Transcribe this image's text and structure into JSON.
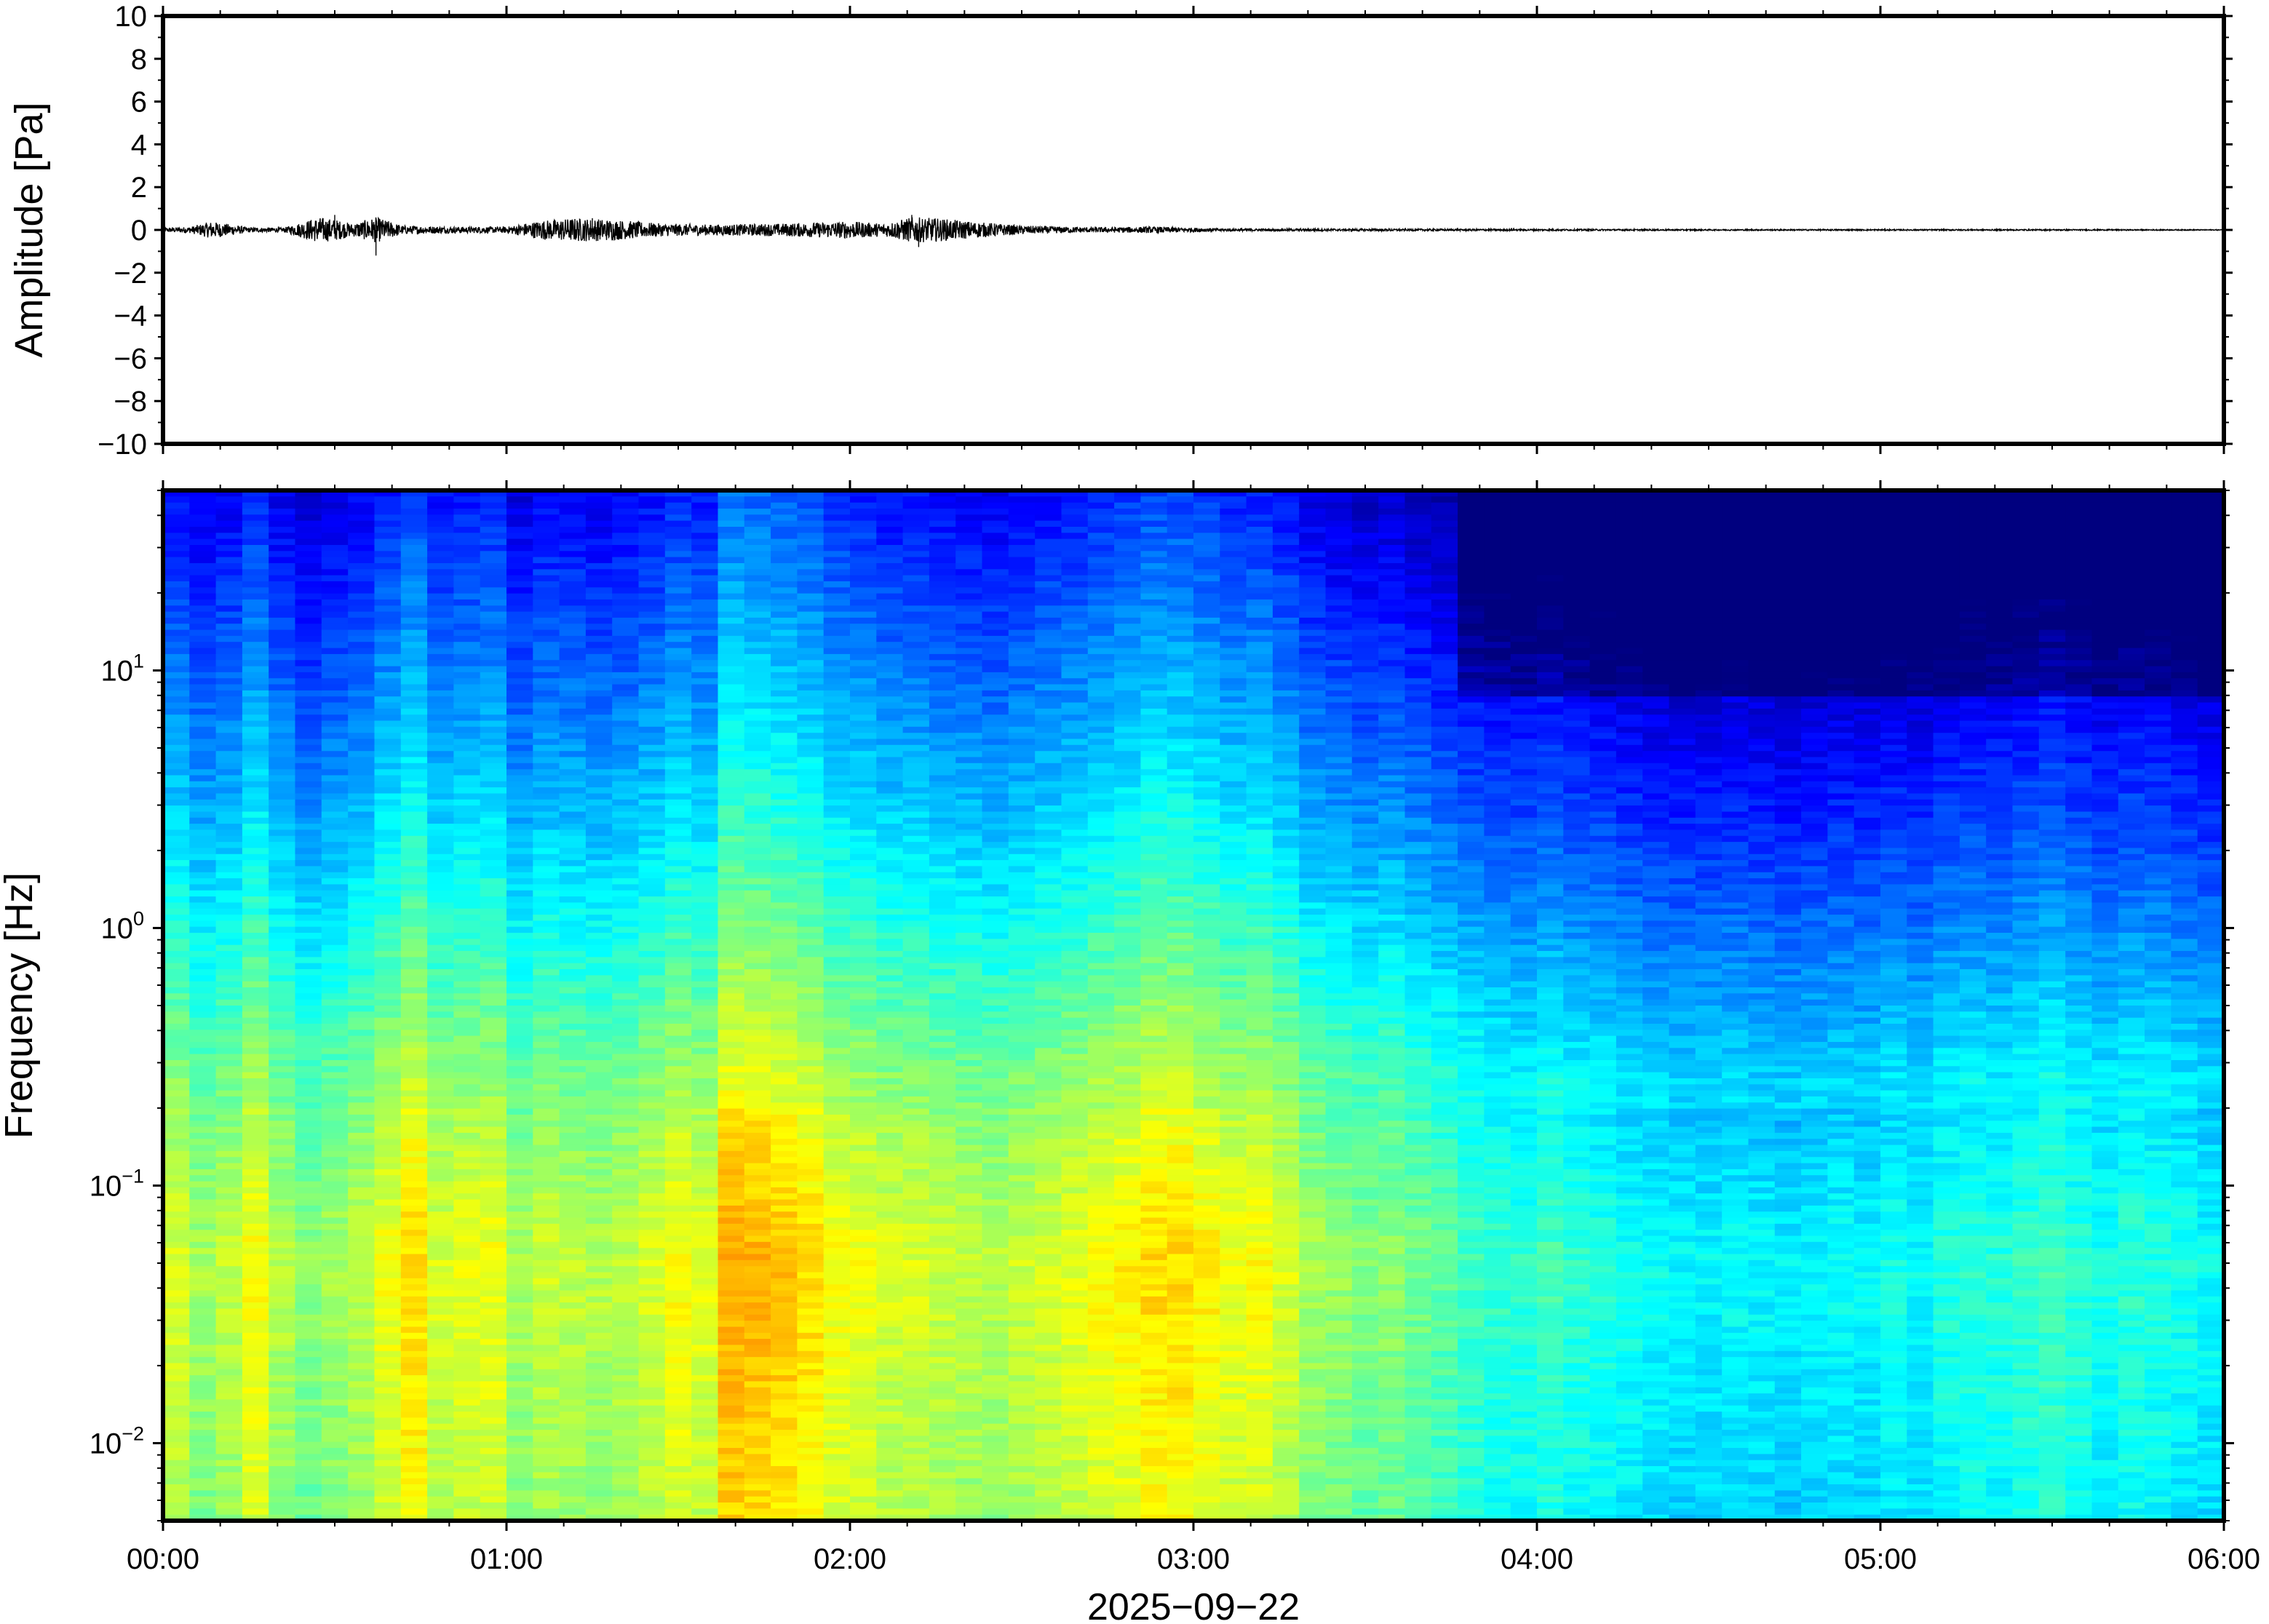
{
  "chart_data": [
    {
      "type": "line",
      "panel": "waveform",
      "ylabel": "Amplitude [Pa]",
      "ylim": [
        -10,
        10
      ],
      "yticks": [
        10,
        8,
        6,
        4,
        2,
        0,
        -2,
        -4,
        -6,
        -8,
        -10
      ],
      "ytick_labels": [
        "10",
        "8",
        "6",
        "4",
        "2",
        "0",
        "−2",
        "−4",
        "−6",
        "−8",
        "−10"
      ],
      "xlim": [
        "00:00",
        "06:00"
      ],
      "series": [
        {
          "x_hours": [
            0.0,
            0.08,
            0.14,
            0.18,
            0.25,
            0.35,
            0.45,
            0.5,
            0.55,
            0.62,
            0.7,
            0.85,
            1.0,
            1.1,
            1.2,
            1.3,
            1.45,
            1.6,
            1.8,
            2.0,
            2.1,
            2.18,
            2.25,
            2.35,
            2.5,
            2.7,
            2.9,
            3.1,
            3.5,
            4.0,
            4.5,
            5.0,
            5.5,
            6.0
          ],
          "envelope": [
            0.1,
            0.15,
            0.4,
            0.3,
            0.12,
            0.1,
            0.6,
            0.5,
            0.3,
            0.6,
            0.2,
            0.15,
            0.15,
            0.45,
            0.55,
            0.5,
            0.3,
            0.25,
            0.3,
            0.4,
            0.3,
            0.6,
            0.55,
            0.4,
            0.2,
            0.12,
            0.15,
            0.06,
            0.05,
            0.04,
            0.03,
            0.03,
            0.03,
            0.02
          ],
          "spikes": [
            [
              0.62,
              -1.2
            ],
            [
              0.5,
              0.7
            ],
            [
              2.18,
              0.7
            ],
            [
              2.2,
              -0.8
            ],
            [
              1.25,
              0.55
            ]
          ]
        }
      ]
    },
    {
      "type": "heatmap",
      "panel": "spectrogram",
      "ylabel": "Frequency [Hz]",
      "yscale": "log",
      "ylim": [
        0.005,
        50
      ],
      "yticks": [
        {
          "base": "10",
          "exp": "1",
          "value": 10
        },
        {
          "base": "10",
          "exp": "0",
          "value": 1
        },
        {
          "base": "10",
          "exp": "−1",
          "value": 0.1
        },
        {
          "base": "10",
          "exp": "−2",
          "value": 0.01
        }
      ],
      "xlim": [
        "00:00",
        "06:00"
      ],
      "xticks": [
        "00:00",
        "01:00",
        "02:00",
        "03:00",
        "04:00",
        "05:00",
        "06:00"
      ],
      "xlabel": "2025−09−22",
      "colormap": "jet",
      "colors": [
        "#00007f",
        "#0000ff",
        "#007fff",
        "#00ffff",
        "#7fff7f",
        "#ffff00",
        "#ff7f00",
        "#ff0000"
      ],
      "column_activity": [
        0.55,
        0.45,
        0.5,
        0.62,
        0.48,
        0.4,
        0.45,
        0.5,
        0.6,
        0.7,
        0.55,
        0.58,
        0.6,
        0.45,
        0.52,
        0.5,
        0.48,
        0.5,
        0.55,
        0.62,
        0.58,
        0.8,
        0.78,
        0.75,
        0.7,
        0.62,
        0.6,
        0.55,
        0.55,
        0.52,
        0.5,
        0.48,
        0.52,
        0.55,
        0.58,
        0.62,
        0.65,
        0.7,
        0.7,
        0.65,
        0.6,
        0.62,
        0.55,
        0.45,
        0.42,
        0.38,
        0.4,
        0.35,
        0.3,
        0.25,
        0.22,
        0.2,
        0.25,
        0.2,
        0.18,
        0.15,
        0.12,
        0.1,
        0.1,
        0.12,
        0.1,
        0.08,
        0.1,
        0.12,
        0.1,
        0.15,
        0.12,
        0.18,
        0.2,
        0.18,
        0.22,
        0.25,
        0.2,
        0.15,
        0.2,
        0.18,
        0.15,
        0.12
      ]
    }
  ]
}
